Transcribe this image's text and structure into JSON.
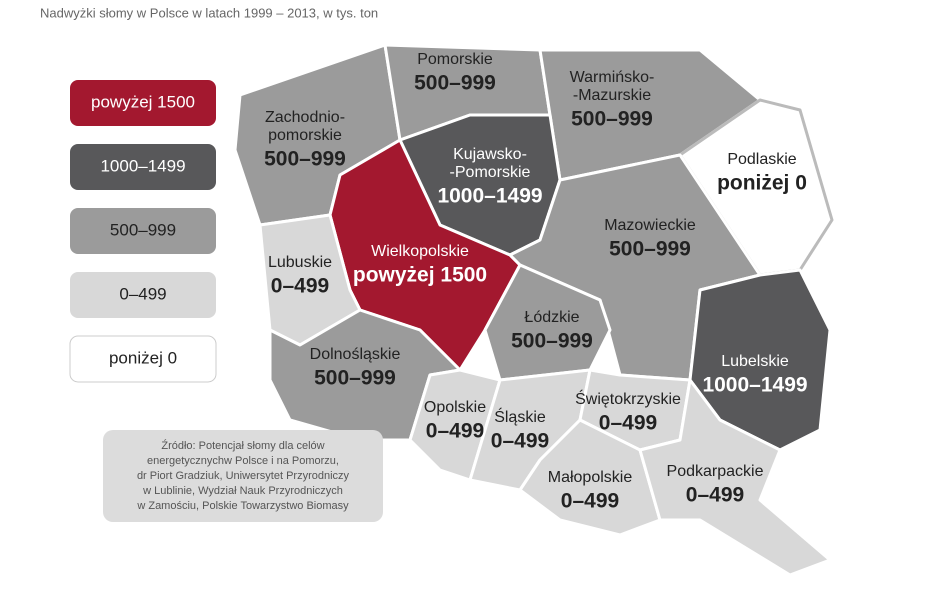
{
  "title": "Nadwyżki słomy w Polsce w latach 1999 – 2013, w tys. ton",
  "legend": [
    {
      "label": "powyżej 1500",
      "color": "#a3182f"
    },
    {
      "label": "1000–1499",
      "color": "#58585a"
    },
    {
      "label": "500–999",
      "color": "#9b9b9b"
    },
    {
      "label": "0–499",
      "color": "#d8d8d8"
    },
    {
      "label": "poniżej 0",
      "color": "#ffffff"
    }
  ],
  "regions": [
    {
      "name": [
        "Zachodnio-",
        "pomorskie"
      ],
      "value": "500–999",
      "color": "#9b9b9b"
    },
    {
      "name": [
        "Pomorskie"
      ],
      "value": "500–999",
      "color": "#9b9b9b"
    },
    {
      "name": [
        "Warmińsko-",
        "-Mazurskie"
      ],
      "value": "500–999",
      "color": "#9b9b9b"
    },
    {
      "name": [
        "Podlaskie"
      ],
      "value": "poniżej 0",
      "color": "#ffffff"
    },
    {
      "name": [
        "Kujawsko-",
        "-Pomorskie"
      ],
      "value": "1000–1499",
      "color": "#58585a"
    },
    {
      "name": [
        "Wielkopolskie"
      ],
      "value": "powyżej 1500",
      "color": "#a3182f"
    },
    {
      "name": [
        "Lubuskie"
      ],
      "value": "0–499",
      "color": "#d8d8d8"
    },
    {
      "name": [
        "Mazowieckie"
      ],
      "value": "500–999",
      "color": "#9b9b9b"
    },
    {
      "name": [
        "Lubelskie"
      ],
      "value": "1000–1499",
      "color": "#58585a"
    },
    {
      "name": [
        "Łódzkie"
      ],
      "value": "500–999",
      "color": "#9b9b9b"
    },
    {
      "name": [
        "Dolnośląskie"
      ],
      "value": "500–999",
      "color": "#9b9b9b"
    },
    {
      "name": [
        "Opolskie"
      ],
      "value": "0–499",
      "color": "#d8d8d8"
    },
    {
      "name": [
        "Śląskie"
      ],
      "value": "0–499",
      "color": "#d8d8d8"
    },
    {
      "name": [
        "Świętokrzyskie"
      ],
      "value": "0–499",
      "color": "#d8d8d8"
    },
    {
      "name": [
        "Małopolskie"
      ],
      "value": "0–499",
      "color": "#d8d8d8"
    },
    {
      "name": [
        "Podkarpackie"
      ],
      "value": "0–499",
      "color": "#d8d8d8"
    }
  ],
  "source": [
    "Źródło: Potencjał słomy dla celów",
    "energetycznychw Polsce i na Pomorzu,",
    "dr Piort Gradziuk, Uniwersytet Przyrodniczy",
    "w Lublinie, Wydział Nauk Przyrodniczych",
    "w Zamościu, Polskie Towarzystwo Biomasy"
  ]
}
